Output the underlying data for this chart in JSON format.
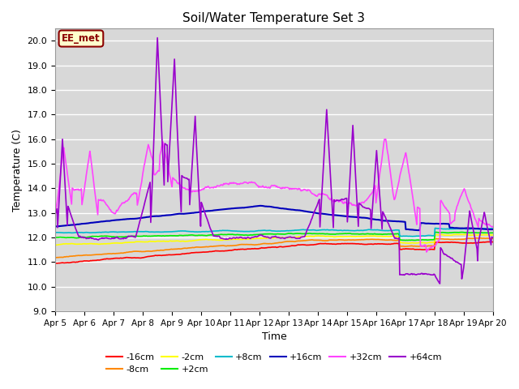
{
  "title": "Soil/Water Temperature Set 3",
  "xlabel": "Time",
  "ylabel": "Temperature (C)",
  "ylim": [
    9.0,
    20.5
  ],
  "yticks": [
    9.0,
    10.0,
    11.0,
    12.0,
    13.0,
    14.0,
    15.0,
    16.0,
    17.0,
    18.0,
    19.0,
    20.0
  ],
  "bg_color": "#d8d8d8",
  "annotation_text": "EE_met",
  "annotation_bg": "#ffffcc",
  "annotation_border": "#8b0000",
  "series_order": [
    "-16cm",
    "-8cm",
    "-2cm",
    "+2cm",
    "+8cm",
    "+16cm",
    "+32cm",
    "+64cm"
  ],
  "series": {
    "-16cm": {
      "color": "#ff0000",
      "lw": 1.2
    },
    "-8cm": {
      "color": "#ff8800",
      "lw": 1.2
    },
    "-2cm": {
      "color": "#ffff00",
      "lw": 1.2
    },
    "+2cm": {
      "color": "#00ee00",
      "lw": 1.2
    },
    "+8cm": {
      "color": "#00bbcc",
      "lw": 1.2
    },
    "+16cm": {
      "color": "#0000bb",
      "lw": 1.5
    },
    "+32cm": {
      "color": "#ff44ff",
      "lw": 1.2
    },
    "+64cm": {
      "color": "#9900cc",
      "lw": 1.2
    }
  },
  "x_tick_labels": [
    "Apr 5",
    "Apr 6",
    "Apr 7",
    "Apr 8",
    "Apr 9",
    "Apr 10",
    "Apr 11",
    "Apr 12",
    "Apr 13",
    "Apr 14",
    "Apr 15",
    "Apr 16",
    "Apr 17",
    "Apr 18",
    "Apr 19",
    "Apr 20"
  ],
  "legend_ncol": 6
}
